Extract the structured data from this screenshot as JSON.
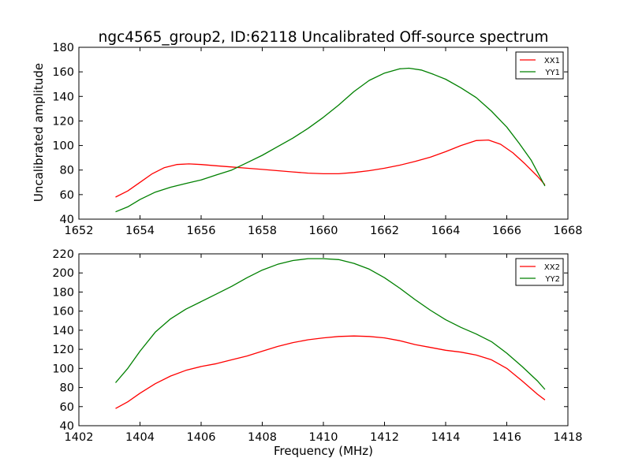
{
  "figure": {
    "title": "ngc4565_group2, ID:62118 Uncalibrated Off-source spectrum",
    "ylabel": "Uncalibrated amplitude",
    "xlabel": "Frequency (MHz)"
  },
  "chart_data": [
    {
      "type": "line",
      "xlim": [
        1652,
        1668
      ],
      "ylim": [
        40,
        180
      ],
      "xticks": [
        "1652",
        "1654",
        "1656",
        "1658",
        "1660",
        "1662",
        "1664",
        "1666",
        "1668"
      ],
      "yticks": [
        "40",
        "60",
        "80",
        "100",
        "120",
        "140",
        "160",
        "180"
      ],
      "grid": false,
      "legend_position": "top-right",
      "series": [
        {
          "name": "XX1",
          "color": "#ff0000",
          "x": [
            1653.2,
            1653.6,
            1654.0,
            1654.4,
            1654.8,
            1655.2,
            1655.6,
            1656.0,
            1656.5,
            1657.0,
            1657.5,
            1658.0,
            1658.5,
            1659.0,
            1659.5,
            1660.0,
            1660.5,
            1661.0,
            1661.5,
            1662.0,
            1662.5,
            1663.0,
            1663.5,
            1664.0,
            1664.5,
            1665.0,
            1665.4,
            1665.8,
            1666.2,
            1666.6,
            1667.0,
            1667.25
          ],
          "values": [
            58,
            63,
            70,
            77,
            82,
            84.5,
            85,
            84.5,
            83.5,
            82.5,
            81.5,
            80.5,
            79.5,
            78.5,
            77.5,
            77,
            77,
            78,
            79.5,
            81.5,
            84,
            87,
            90.5,
            95,
            100,
            104,
            104.5,
            101,
            94,
            85,
            75,
            68
          ]
        },
        {
          "name": "YY1",
          "color": "#008000",
          "x": [
            1653.2,
            1653.6,
            1654.0,
            1654.5,
            1655.0,
            1655.5,
            1656.0,
            1656.5,
            1657.0,
            1657.5,
            1658.0,
            1658.5,
            1659.0,
            1659.5,
            1660.0,
            1660.5,
            1661.0,
            1661.5,
            1662.0,
            1662.5,
            1662.8,
            1663.2,
            1663.6,
            1664.0,
            1664.5,
            1665.0,
            1665.5,
            1666.0,
            1666.4,
            1666.8,
            1667.25
          ],
          "values": [
            46,
            50,
            56,
            62,
            66,
            69,
            72,
            76,
            80,
            86,
            92,
            99,
            106,
            114,
            123,
            133,
            144,
            153,
            159,
            162.5,
            163,
            161.5,
            158,
            154,
            147,
            139,
            128,
            115,
            102,
            88,
            67
          ]
        }
      ]
    },
    {
      "type": "line",
      "xlim": [
        1402,
        1418
      ],
      "ylim": [
        40,
        220
      ],
      "xticks": [
        "1402",
        "1404",
        "1406",
        "1408",
        "1410",
        "1412",
        "1414",
        "1416",
        "1418"
      ],
      "yticks": [
        "40",
        "60",
        "80",
        "100",
        "120",
        "140",
        "160",
        "180",
        "200",
        "220"
      ],
      "grid": false,
      "legend_position": "top-right",
      "series": [
        {
          "name": "XX2",
          "color": "#ff0000",
          "x": [
            1403.2,
            1403.6,
            1404.0,
            1404.5,
            1405.0,
            1405.5,
            1406.0,
            1406.5,
            1407.0,
            1407.5,
            1408.0,
            1408.5,
            1409.0,
            1409.5,
            1410.0,
            1410.5,
            1411.0,
            1411.5,
            1412.0,
            1412.5,
            1413.0,
            1413.5,
            1414.0,
            1414.5,
            1415.0,
            1415.5,
            1416.0,
            1416.5,
            1417.0,
            1417.25
          ],
          "values": [
            58,
            65,
            74,
            84,
            92,
            98,
            102,
            105,
            109,
            113,
            118,
            123,
            127,
            130,
            132,
            133.5,
            134,
            133.5,
            132,
            129,
            125,
            122,
            119,
            117,
            114,
            109,
            100,
            87,
            73,
            67
          ]
        },
        {
          "name": "YY2",
          "color": "#008000",
          "x": [
            1403.2,
            1403.6,
            1404.0,
            1404.5,
            1405.0,
            1405.5,
            1406.0,
            1406.5,
            1407.0,
            1407.5,
            1408.0,
            1408.5,
            1409.0,
            1409.5,
            1410.0,
            1410.5,
            1411.0,
            1411.5,
            1412.0,
            1412.5,
            1413.0,
            1413.5,
            1414.0,
            1414.5,
            1415.0,
            1415.5,
            1416.0,
            1416.5,
            1417.0,
            1417.25
          ],
          "values": [
            85,
            100,
            118,
            138,
            152,
            162,
            170,
            178,
            186,
            195,
            203,
            209,
            213,
            215,
            215,
            214,
            210,
            204,
            195,
            184,
            172,
            161,
            151,
            143,
            136,
            128,
            116,
            102,
            87,
            78
          ]
        }
      ]
    }
  ]
}
